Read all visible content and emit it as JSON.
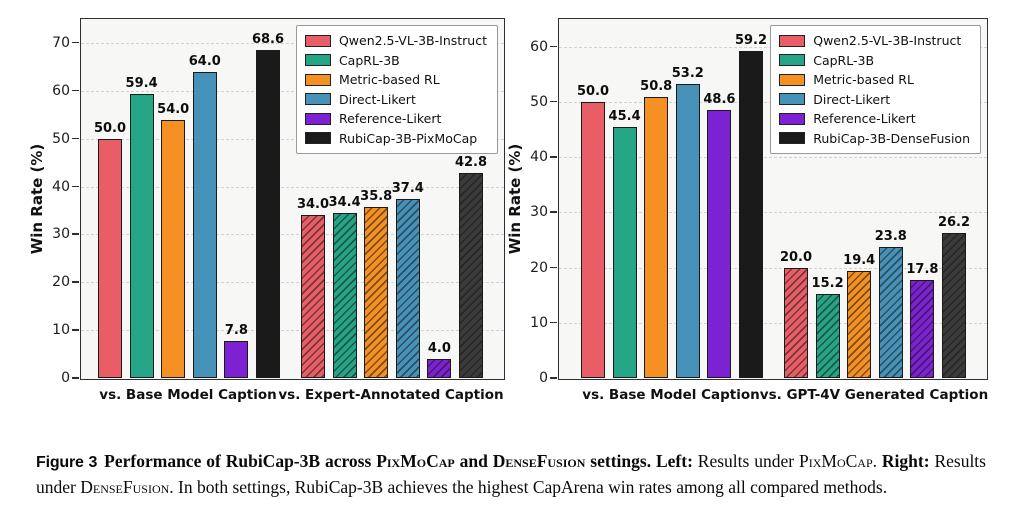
{
  "colors": {
    "series": [
      "#e85d66",
      "#26a586",
      "#f59122",
      "#4692b8",
      "#7d22d3",
      "#1a1a1a"
    ],
    "rubicap_hatched_dark": "#3b3b3b",
    "plot_background": "#f7f7f5",
    "grid_line": "#d2d2d2",
    "frame": "#2f2f2f",
    "legend_border": "#9a9a9a"
  },
  "chart_data": [
    {
      "type": "bar",
      "title": "",
      "xlabel": "",
      "ylabel": "Win Rate (%)",
      "ylim": [
        0,
        75
      ],
      "yticks": [
        0,
        10,
        20,
        30,
        40,
        50,
        60,
        70
      ],
      "grid": true,
      "legend_position": "upper right",
      "hatched_category_index": 1,
      "categories": [
        "vs. Base Model Caption",
        "vs. Expert-Annotated Caption"
      ],
      "series": [
        {
          "name": "Qwen2.5-VL-3B-Instruct",
          "values": [
            50.0,
            34.0
          ]
        },
        {
          "name": "CapRL-3B",
          "values": [
            59.4,
            34.4
          ]
        },
        {
          "name": "Metric-based RL",
          "values": [
            54.0,
            35.8
          ]
        },
        {
          "name": "Direct-Likert",
          "values": [
            64.0,
            37.4
          ]
        },
        {
          "name": "Reference-Likert",
          "values": [
            7.8,
            4.0
          ]
        },
        {
          "name": "RubiCap-3B-PixMoCap",
          "values": [
            68.6,
            42.8
          ]
        }
      ]
    },
    {
      "type": "bar",
      "title": "",
      "xlabel": "",
      "ylabel": "Win Rate (%)",
      "ylim": [
        0,
        65
      ],
      "yticks": [
        0,
        10,
        20,
        30,
        40,
        50,
        60
      ],
      "grid": true,
      "legend_position": "upper right",
      "hatched_category_index": 1,
      "categories": [
        "vs. Base Model Caption",
        "vs. GPT-4V Generated Caption"
      ],
      "series": [
        {
          "name": "Qwen2.5-VL-3B-Instruct",
          "values": [
            50.0,
            20.0
          ]
        },
        {
          "name": "CapRL-3B",
          "values": [
            45.4,
            15.2
          ]
        },
        {
          "name": "Metric-based RL",
          "values": [
            50.8,
            19.4
          ]
        },
        {
          "name": "Direct-Likert",
          "values": [
            53.2,
            23.8
          ]
        },
        {
          "name": "Reference-Likert",
          "values": [
            48.6,
            17.8
          ]
        },
        {
          "name": "RubiCap-3B-DenseFusion",
          "values": [
            59.2,
            26.2
          ]
        }
      ]
    }
  ],
  "caption": {
    "segments": [
      {
        "text": "Figure 3",
        "style": "figlabel"
      },
      {
        "text": "Performance of RubiCap-3B across ",
        "style": "bold"
      },
      {
        "text": "PixMoCap",
        "style": "boldsc"
      },
      {
        "text": " and ",
        "style": "bold"
      },
      {
        "text": "DenseFusion",
        "style": "boldsc"
      },
      {
        "text": " settings. ",
        "style": "bold"
      },
      {
        "text": "Left:",
        "style": "bold"
      },
      {
        "text": " Results under ",
        "style": "reg"
      },
      {
        "text": "PixMoCap",
        "style": "sc"
      },
      {
        "text": ". ",
        "style": "reg"
      },
      {
        "text": "Right:",
        "style": "bold"
      },
      {
        "text": " Results under ",
        "style": "reg"
      },
      {
        "text": "DenseFusion",
        "style": "sc"
      },
      {
        "text": ". In both settings, RubiCap-3B achieves the highest CapArena win rates among all compared methods.",
        "style": "reg"
      }
    ]
  }
}
